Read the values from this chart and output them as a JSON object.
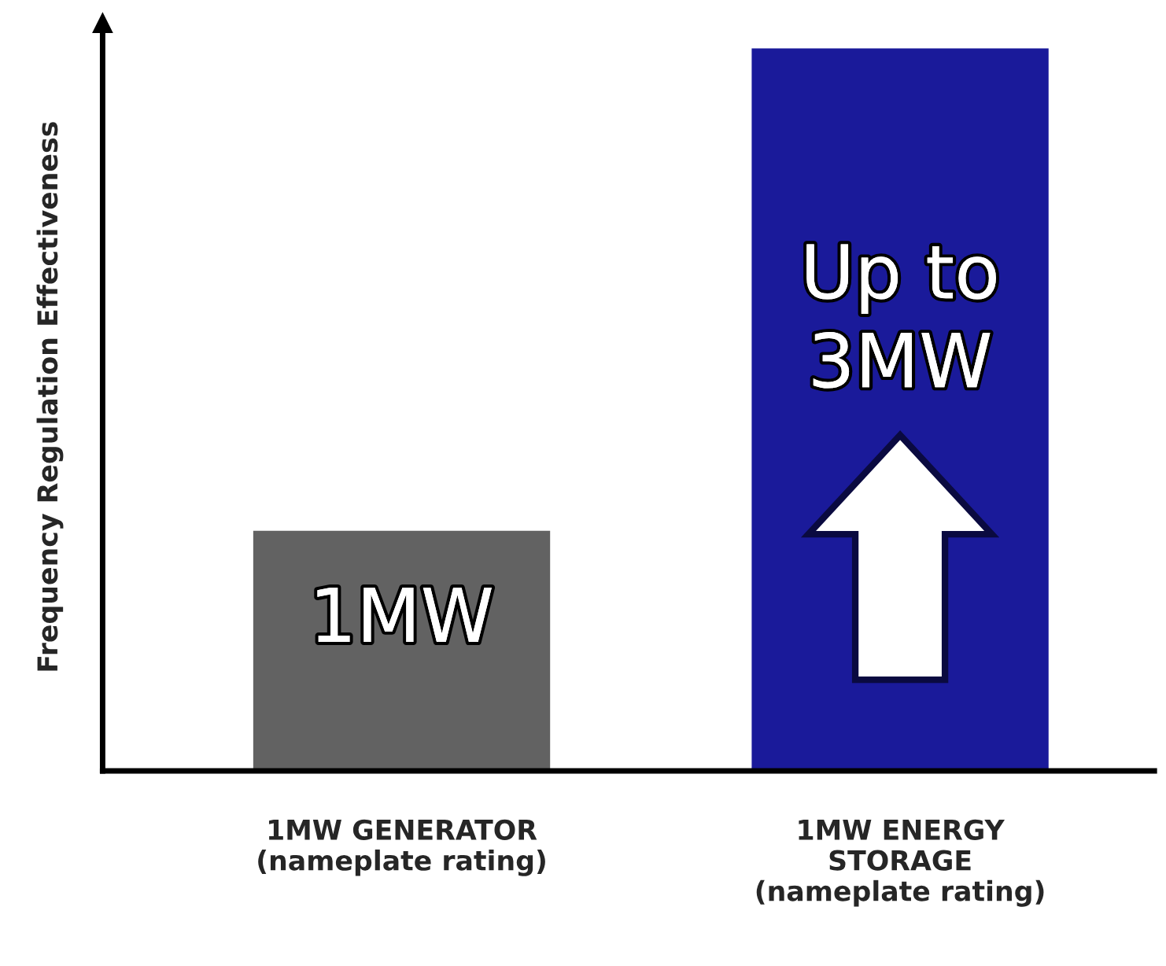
{
  "chart_data": {
    "type": "bar",
    "ylim": [
      0,
      3.1
    ],
    "ylabel": "Frequency Regulation Effectiveness",
    "categories": [
      "1MW GENERATOR\n(nameplate rating)",
      "1MW ENERGY\nSTORAGE\n(nameplate rating)"
    ],
    "values": [
      1,
      3
    ],
    "colors": [
      "#626262",
      "#1a1a9a"
    ],
    "value_labels": [
      "1MW",
      "Up to\n3MW"
    ],
    "grid": false,
    "legend": false
  }
}
